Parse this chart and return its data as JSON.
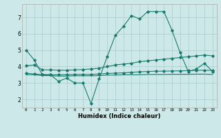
{
  "xlabel": "Humidex (Indice chaleur)",
  "bg_color": "#cce8e8",
  "grid_color": "#aacccc",
  "line_color": "#1a7a6e",
  "xlim": [
    -0.5,
    23.5
  ],
  "ylim": [
    1.5,
    7.8
  ],
  "xticks": [
    0,
    1,
    2,
    3,
    4,
    5,
    6,
    7,
    8,
    9,
    10,
    11,
    12,
    13,
    14,
    15,
    16,
    17,
    18,
    19,
    20,
    21,
    22,
    23
  ],
  "yticks": [
    2,
    3,
    4,
    5,
    6,
    7
  ],
  "line1_x": [
    0,
    1,
    2,
    3,
    4,
    5,
    6,
    7,
    8,
    9,
    10,
    11,
    12,
    13,
    14,
    15,
    16,
    17,
    18,
    19,
    20,
    21,
    22,
    23
  ],
  "line1_y": [
    5.0,
    4.4,
    3.5,
    3.5,
    3.1,
    3.3,
    3.0,
    3.0,
    1.75,
    3.25,
    4.6,
    5.9,
    6.45,
    7.1,
    6.9,
    7.35,
    7.35,
    7.35,
    6.2,
    4.85,
    3.7,
    3.85,
    4.2,
    3.7
  ],
  "line2_x": [
    0,
    1,
    2,
    3,
    4,
    5,
    6,
    7,
    8,
    9,
    10,
    11,
    12,
    13,
    14,
    15,
    16,
    17,
    18,
    19,
    20,
    21,
    22,
    23
  ],
  "line2_y": [
    4.05,
    4.1,
    3.8,
    3.8,
    3.78,
    3.78,
    3.8,
    3.82,
    3.85,
    3.9,
    4.0,
    4.1,
    4.15,
    4.2,
    4.3,
    4.35,
    4.4,
    4.45,
    4.5,
    4.55,
    4.6,
    4.65,
    4.7,
    4.65
  ],
  "line3_x": [
    0,
    1,
    2,
    3,
    4,
    5,
    6,
    7,
    8,
    9,
    10,
    11,
    12,
    13,
    14,
    15,
    16,
    17,
    18,
    19,
    20,
    21,
    22,
    23
  ],
  "line3_y": [
    3.6,
    3.55,
    3.52,
    3.5,
    3.5,
    3.5,
    3.52,
    3.52,
    3.52,
    3.55,
    3.58,
    3.6,
    3.62,
    3.65,
    3.68,
    3.7,
    3.72,
    3.72,
    3.73,
    3.74,
    3.75,
    3.77,
    3.78,
    3.76
  ],
  "line4_x": [
    0,
    1,
    2,
    3,
    4,
    5,
    6,
    7,
    8,
    9,
    10,
    11,
    12,
    13,
    14,
    15,
    16,
    17,
    18,
    19,
    20,
    21,
    22,
    23
  ],
  "line4_y": [
    3.5,
    3.5,
    3.45,
    3.45,
    3.42,
    3.42,
    3.44,
    3.44,
    3.44,
    3.45,
    3.48,
    3.48,
    3.5,
    3.5,
    3.5,
    3.52,
    3.52,
    3.52,
    3.53,
    3.53,
    3.53,
    3.54,
    3.54,
    3.52
  ]
}
